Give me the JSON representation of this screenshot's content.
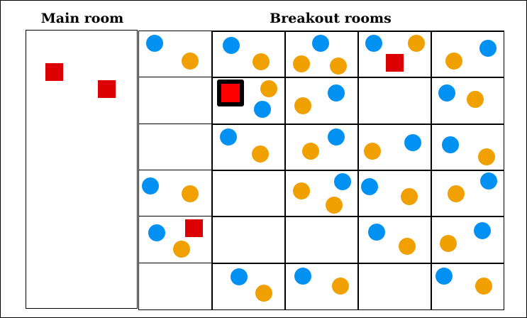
{
  "main_room": {
    "title": "Main room",
    "items": [
      "red-square",
      "red-square"
    ]
  },
  "breakout": {
    "title": "Breakout rooms",
    "rows": [
      [
        [
          "blue",
          "orange"
        ],
        [
          "blue",
          "orange"
        ],
        [
          "blue",
          "orange",
          "orange"
        ],
        [
          "blue",
          "orange",
          "red-square"
        ],
        [
          "orange",
          "blue"
        ]
      ],
      [
        [],
        [
          "red-square-selected",
          "orange",
          "blue"
        ],
        [
          "blue",
          "orange"
        ],
        [],
        [
          "blue",
          "orange"
        ]
      ],
      [
        [],
        [
          "blue",
          "orange"
        ],
        [
          "blue",
          "orange"
        ],
        [
          "orange",
          "blue"
        ],
        [
          "blue",
          "orange"
        ]
      ],
      [
        [
          "blue",
          "orange"
        ],
        [],
        [
          "blue",
          "orange",
          "orange"
        ],
        [
          "blue",
          "orange"
        ],
        [
          "blue",
          "orange"
        ]
      ],
      [
        [
          "blue",
          "orange",
          "red-square"
        ],
        [],
        [],
        [
          "blue",
          "orange"
        ],
        [
          "blue",
          "orange"
        ]
      ],
      [
        [],
        [
          "blue",
          "orange"
        ],
        [
          "blue",
          "orange"
        ],
        [],
        [
          "blue",
          "orange"
        ]
      ]
    ]
  },
  "colors": {
    "blue": "#0091f2",
    "orange": "#f0a000",
    "red": "#dd0000",
    "selected": "#ff0000"
  }
}
